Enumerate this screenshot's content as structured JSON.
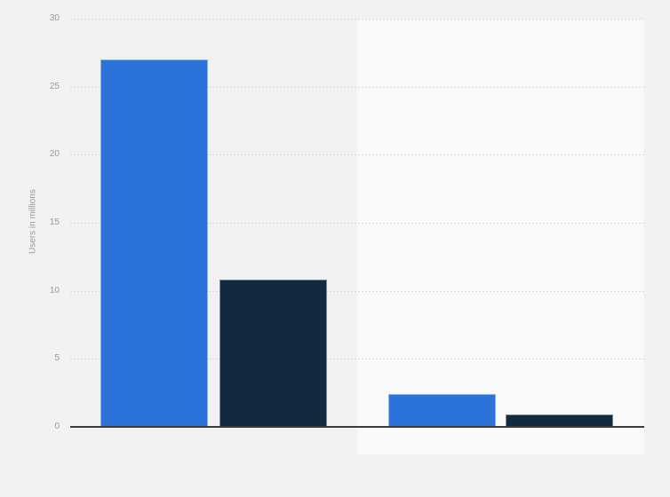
{
  "chart_data": {
    "type": "bar",
    "title": "",
    "xlabel": "",
    "ylabel": "Users in millions",
    "ylim": [
      0,
      30
    ],
    "yticks": [
      0,
      5,
      10,
      15,
      20,
      25,
      30
    ],
    "grid": "horizontal-dotted",
    "legend_position": "none",
    "categories": [
      "",
      ""
    ],
    "series": [
      {
        "name": "blue-series",
        "color": "#2b72d9",
        "values": [
          27.0,
          2.4
        ]
      },
      {
        "name": "dark-navy-series",
        "color": "#13293f",
        "values": [
          10.8,
          0.9
        ]
      }
    ],
    "bars": [
      {
        "label": "bar-1",
        "value": 27.0,
        "color": "#2b72d9"
      },
      {
        "label": "bar-2",
        "value": 10.8,
        "color": "#13293f"
      },
      {
        "label": "bar-3",
        "value": 2.4,
        "color": "#2b72d9"
      },
      {
        "label": "bar-4",
        "value": 0.9,
        "color": "#13293f"
      }
    ],
    "colors": {
      "page_background": "#f2f2f2",
      "band_highlight": "#f9f9f9",
      "axis": "#3a3a3a",
      "grid": "#d9d9d9",
      "tick_text": "#999999"
    }
  }
}
